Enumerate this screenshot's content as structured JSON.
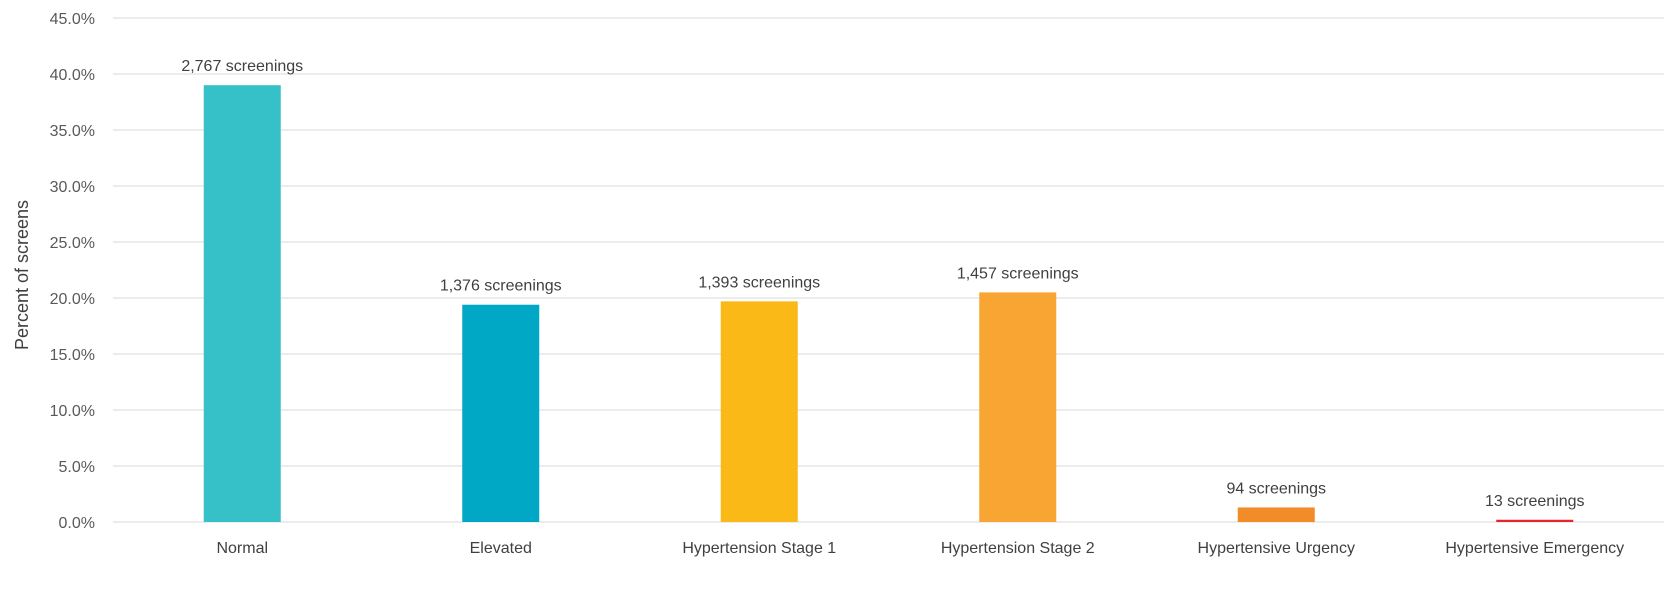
{
  "chart_data": {
    "type": "bar",
    "title": "",
    "xlabel": "",
    "ylabel": "Percent of screens",
    "ylim": [
      0,
      45
    ],
    "yticks": [
      0,
      5,
      10,
      15,
      20,
      25,
      30,
      35,
      40,
      45
    ],
    "ytick_suffix": "%",
    "grid": true,
    "categories": [
      "Normal",
      "Elevated",
      "Hypertension Stage 1",
      "Hypertension Stage 2",
      "Hypertensive Urgency",
      "Hypertensive Emergency"
    ],
    "values": [
      39.0,
      19.4,
      19.7,
      20.5,
      1.3,
      0.2
    ],
    "data_labels": [
      "2,767 screenings",
      "1,376 screenings",
      "1,393 screenings",
      "1,457 screenings",
      "94 screenings",
      "13 screenings"
    ],
    "colors": [
      "#36C1C8",
      "#00A8C6",
      "#FBB917",
      "#F9A533",
      "#F28C28",
      "#E8252A"
    ]
  }
}
